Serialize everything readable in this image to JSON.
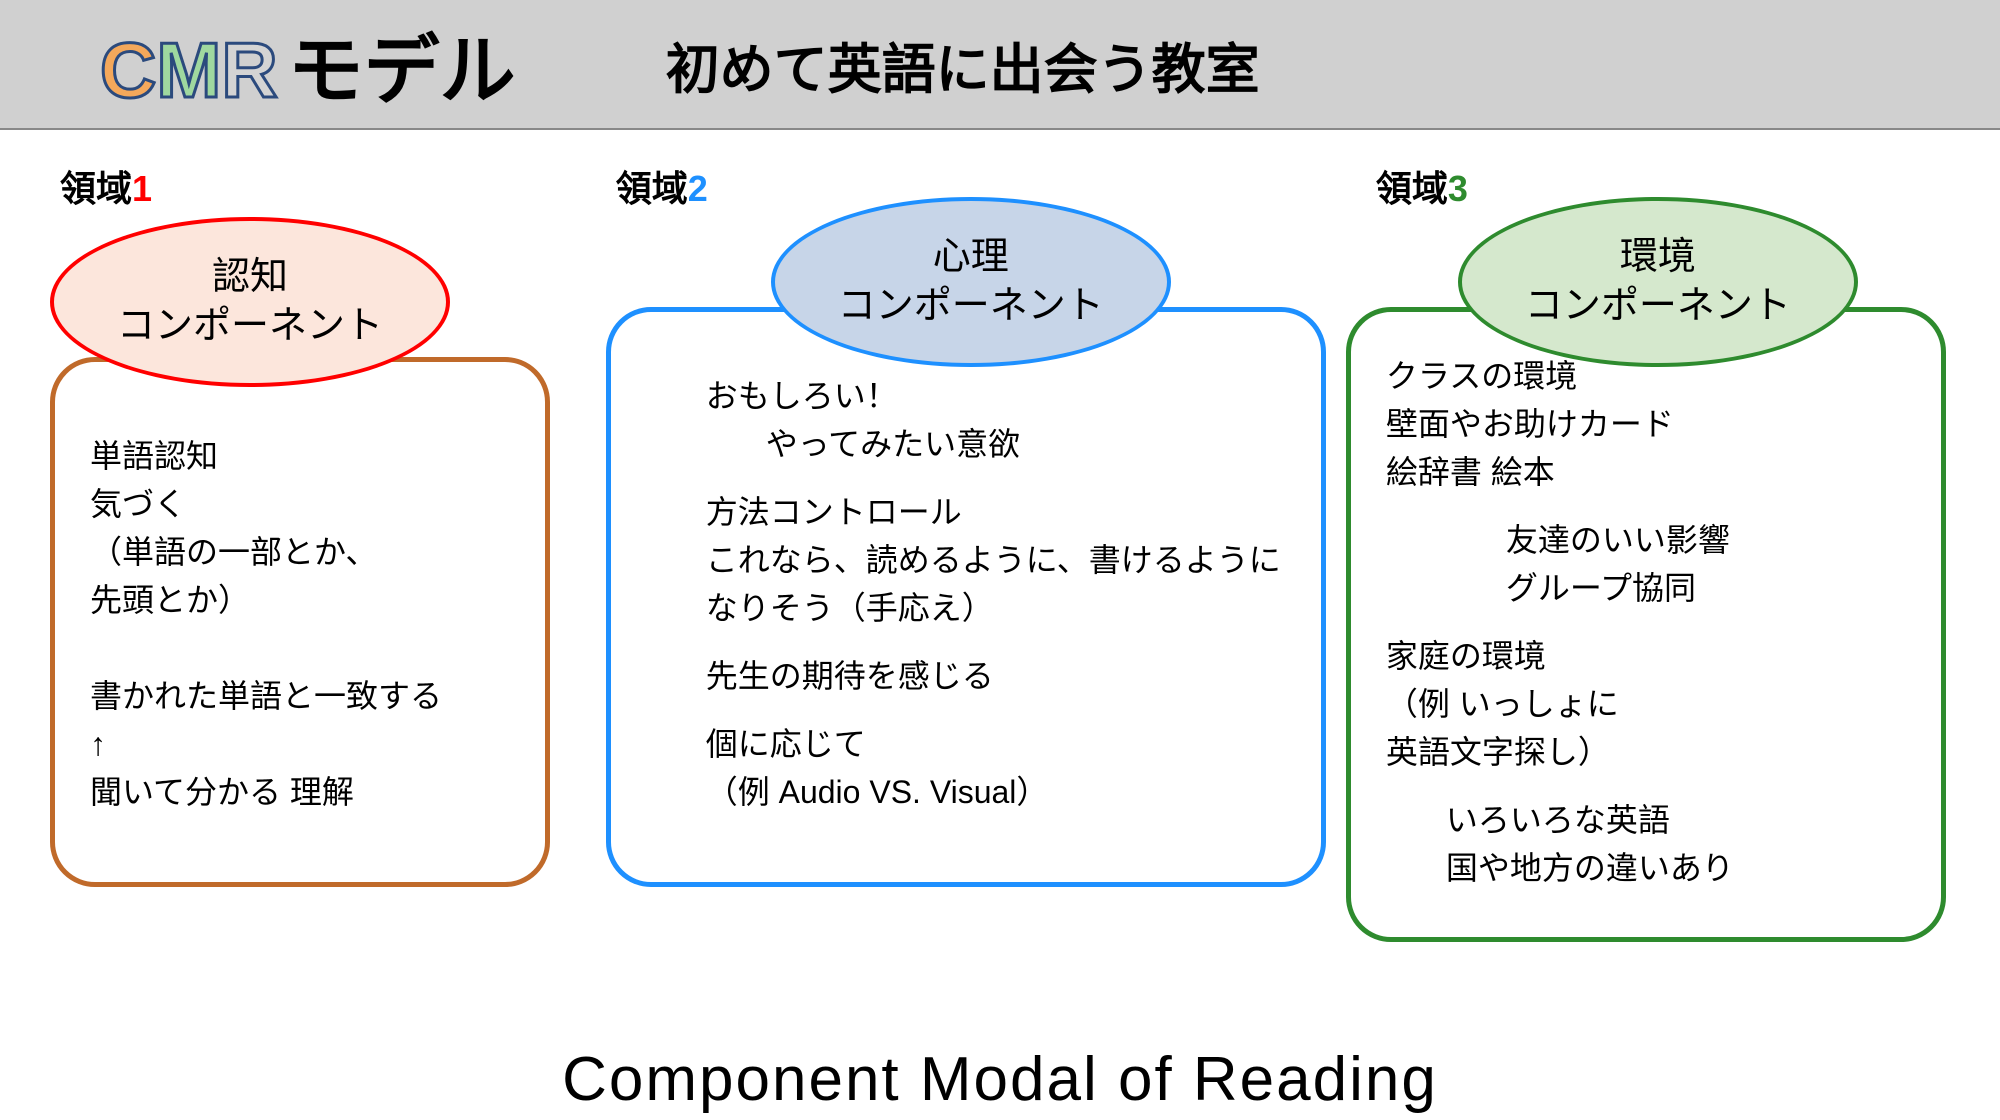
{
  "header": {
    "title_c": "C",
    "title_m": "M",
    "title_r": "R",
    "title_model": "モデル",
    "subtitle": "初めて英語に出会う教室"
  },
  "columns": [
    {
      "domain_prefix": "領域",
      "domain_num": "1",
      "domain_num_color": "#ff0000",
      "ellipse": {
        "line1": "認知",
        "line2": "コンポーネント",
        "fill": "#fce6dc",
        "border": "#ff0000"
      },
      "box": {
        "border": "#c06a2a",
        "items": [
          {
            "text": "単語認知",
            "indent": 0
          },
          {
            "text": "気づく",
            "indent": 0
          },
          {
            "text": "（単語の一部とか、",
            "indent": 0
          },
          {
            "text": "先頭とか）",
            "indent": 0
          },
          {
            "text": "",
            "indent": 0,
            "spacer": true
          },
          {
            "text": "書かれた単語と一致する",
            "indent": 0
          },
          {
            "text": "↑",
            "indent": 0
          },
          {
            "text": "聞いて分かる 理解",
            "indent": 0
          }
        ]
      }
    },
    {
      "domain_prefix": "領域",
      "domain_num": "2",
      "domain_num_color": "#1e90ff",
      "ellipse": {
        "line1": "心理",
        "line2": "コンポーネント",
        "fill": "#c7d5e8",
        "border": "#1e90ff"
      },
      "box": {
        "border": "#1e90ff",
        "items": [
          {
            "text": "おもしろい！",
            "indent": 1
          },
          {
            "text": "やってみたい意欲",
            "indent": 2,
            "spacer_after": true
          },
          {
            "text": "方法コントロール",
            "indent": 1
          },
          {
            "text": "これなら、読めるように、書けるように",
            "indent": 1
          },
          {
            "text": "なりそう（手応え）",
            "indent": 1,
            "spacer_after": true
          },
          {
            "text": "先生の期待を感じる",
            "indent": 1,
            "spacer_after": true
          },
          {
            "text": "個に応じて",
            "indent": 1
          },
          {
            "text": "（例 Audio VS. Visual）",
            "indent": 1
          }
        ]
      }
    },
    {
      "domain_prefix": "領域",
      "domain_num": "3",
      "domain_num_color": "#2e8b2e",
      "ellipse": {
        "line1": "環境",
        "line2": "コンポーネント",
        "fill": "#d5e8cd",
        "border": "#2e8b2e"
      },
      "box": {
        "border": "#2e8b2e",
        "items": [
          {
            "text": "クラスの環境",
            "indent": 0
          },
          {
            "text": "壁面やお助けカード",
            "indent": 0
          },
          {
            "text": "絵辞書 絵本",
            "indent": 0,
            "spacer_after": true
          },
          {
            "text": "友達のいい影響",
            "indent": 2
          },
          {
            "text": "グループ協同",
            "indent": 2,
            "spacer_after": true
          },
          {
            "text": "家庭の環境",
            "indent": 0
          },
          {
            "text": "（例 いっしょに",
            "indent": 0
          },
          {
            "text": " 英語文字探し）",
            "indent": 0,
            "spacer_after": true
          },
          {
            "text": "いろいろな英語",
            "indent": 1
          },
          {
            "text": "国や地方の違いあり",
            "indent": 1
          }
        ]
      }
    }
  ],
  "footer": "Component Modal of Reading",
  "colors": {
    "header_bg": "#d0d0d0",
    "outline": "#2b4a7d"
  },
  "typography": {
    "title_size": 78,
    "subtitle_size": 54,
    "domain_label_size": 36,
    "ellipse_font_size": 38,
    "body_font_size": 32,
    "footer_size": 62
  }
}
